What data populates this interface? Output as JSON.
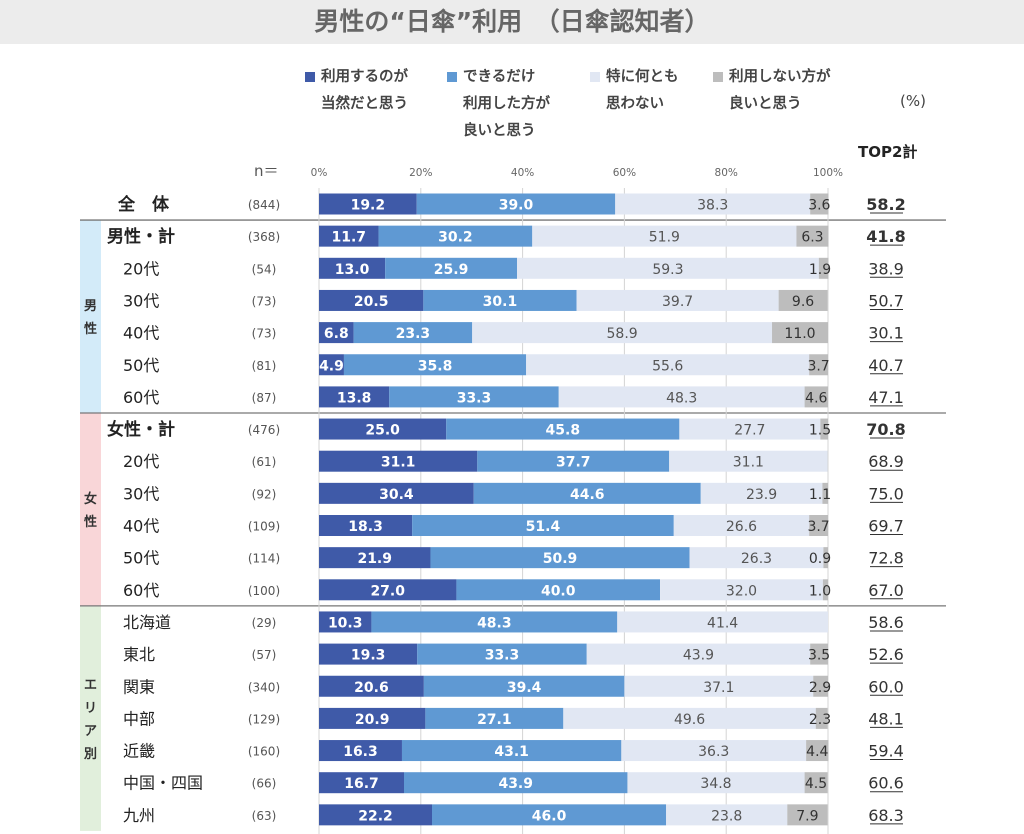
{
  "title": "男性の“日傘”利用　（日傘認知者）",
  "unit_label": "(%)",
  "top2_label": "TOP2計",
  "n_label": "n＝",
  "colors": {
    "s1": "#3f5aa8",
    "s2": "#5f99d3",
    "s3": "#e1e7f3",
    "s4": "#bdbdbd",
    "male_band": "#d3ebf9",
    "female_band": "#f9d6d8",
    "area_band": "#e1efdc"
  },
  "groups": [
    {
      "key": "male",
      "label": "男性"
    },
    {
      "key": "female",
      "label": "女性"
    },
    {
      "key": "area",
      "label": "エリア別"
    }
  ],
  "chart_data": {
    "type": "bar",
    "stacked": true,
    "orientation": "horizontal",
    "x_axis": {
      "ticks": [
        "0%",
        "20%",
        "40%",
        "60%",
        "80%",
        "100%"
      ],
      "range": [
        0,
        100
      ]
    },
    "series": [
      {
        "name": "利用するのが\n当然だと思う",
        "values": [
          19.2,
          11.7,
          13.0,
          20.5,
          6.8,
          4.9,
          13.8,
          25.0,
          31.1,
          30.4,
          18.3,
          21.9,
          27.0,
          10.3,
          19.3,
          20.6,
          20.9,
          16.3,
          16.7,
          22.2
        ]
      },
      {
        "name": "できるだけ\n利用した方が\n良いと思う",
        "values": [
          39.0,
          30.2,
          25.9,
          30.1,
          23.3,
          35.8,
          33.3,
          45.8,
          37.7,
          44.6,
          51.4,
          50.9,
          40.0,
          48.3,
          33.3,
          39.4,
          27.1,
          43.1,
          43.9,
          46.0
        ]
      },
      {
        "name": "特に何とも\n思わない",
        "values": [
          38.3,
          51.9,
          59.3,
          39.7,
          58.9,
          55.6,
          48.3,
          27.7,
          31.1,
          23.9,
          26.6,
          26.3,
          32.0,
          41.4,
          43.9,
          37.1,
          49.6,
          36.3,
          34.8,
          23.8
        ]
      },
      {
        "name": "利用しない方が\n良いと思う",
        "values": [
          3.6,
          6.3,
          1.9,
          9.6,
          11.0,
          3.7,
          4.6,
          1.5,
          null,
          1.1,
          3.7,
          0.9,
          1.0,
          null,
          3.5,
          2.9,
          2.3,
          4.4,
          4.5,
          7.9
        ]
      }
    ],
    "rows": [
      {
        "label": "全　体",
        "n": "(844)",
        "top2": "58.2",
        "group": null,
        "bold": true,
        "total": true
      },
      {
        "label": "男性・計",
        "n": "(368)",
        "top2": "41.8",
        "group": "male",
        "bold": true
      },
      {
        "label": "20代",
        "n": "(54)",
        "top2": "38.9",
        "group": "male"
      },
      {
        "label": "30代",
        "n": "(73)",
        "top2": "50.7",
        "group": "male"
      },
      {
        "label": "40代",
        "n": "(73)",
        "top2": "30.1",
        "group": "male"
      },
      {
        "label": "50代",
        "n": "(81)",
        "top2": "40.7",
        "group": "male"
      },
      {
        "label": "60代",
        "n": "(87)",
        "top2": "47.1",
        "group": "male"
      },
      {
        "label": "女性・計",
        "n": "(476)",
        "top2": "70.8",
        "group": "female",
        "bold": true
      },
      {
        "label": "20代",
        "n": "(61)",
        "top2": "68.9",
        "group": "female"
      },
      {
        "label": "30代",
        "n": "(92)",
        "top2": "75.0",
        "group": "female"
      },
      {
        "label": "40代",
        "n": "(109)",
        "top2": "69.7",
        "group": "female"
      },
      {
        "label": "50代",
        "n": "(114)",
        "top2": "72.8",
        "group": "female"
      },
      {
        "label": "60代",
        "n": "(100)",
        "top2": "67.0",
        "group": "female"
      },
      {
        "label": "北海道",
        "n": "(29)",
        "top2": "58.6",
        "group": "area"
      },
      {
        "label": "東北",
        "n": "(57)",
        "top2": "52.6",
        "group": "area"
      },
      {
        "label": "関東",
        "n": "(340)",
        "top2": "60.0",
        "group": "area"
      },
      {
        "label": "中部",
        "n": "(129)",
        "top2": "48.1",
        "group": "area"
      },
      {
        "label": "近畿",
        "n": "(160)",
        "top2": "59.4",
        "group": "area"
      },
      {
        "label": "中国・四国",
        "n": "(66)",
        "top2": "60.6",
        "group": "area"
      },
      {
        "label": "九州",
        "n": "(63)",
        "top2": "68.3",
        "group": "area"
      }
    ]
  }
}
